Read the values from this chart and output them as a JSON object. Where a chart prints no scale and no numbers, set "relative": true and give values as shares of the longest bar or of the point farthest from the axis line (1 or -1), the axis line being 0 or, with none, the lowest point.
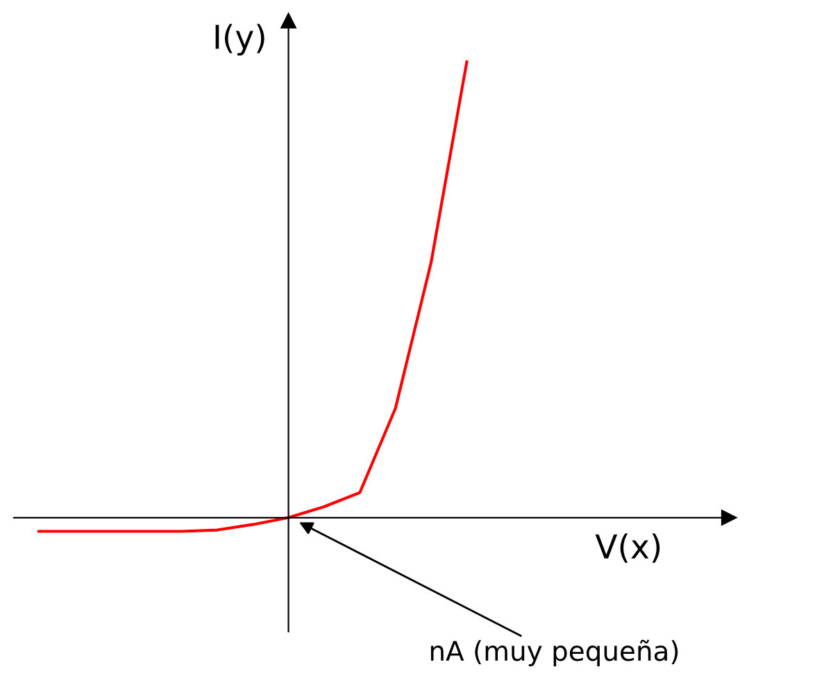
{
  "chart_data": {
    "type": "line",
    "relative": true,
    "xlabel": "V(x)",
    "ylabel": "I(y)",
    "categories": [
      null,
      null,
      null,
      null,
      null,
      null,
      null,
      null,
      null,
      null,
      null,
      null,
      null
    ],
    "series": [
      {
        "color": "#ff0000",
        "values": [
          -0.03,
          -0.03,
          -0.03,
          -0.03,
          -0.03,
          -0.027,
          -0.015,
          0,
          0.024,
          0.055,
          0.24,
          0.56,
          1.0
        ]
      }
    ],
    "annotations": [
      "nA (muy pequeña)"
    ],
    "tick_labels": false,
    "legend": false,
    "marker": "none",
    "line_style": "solid"
  }
}
